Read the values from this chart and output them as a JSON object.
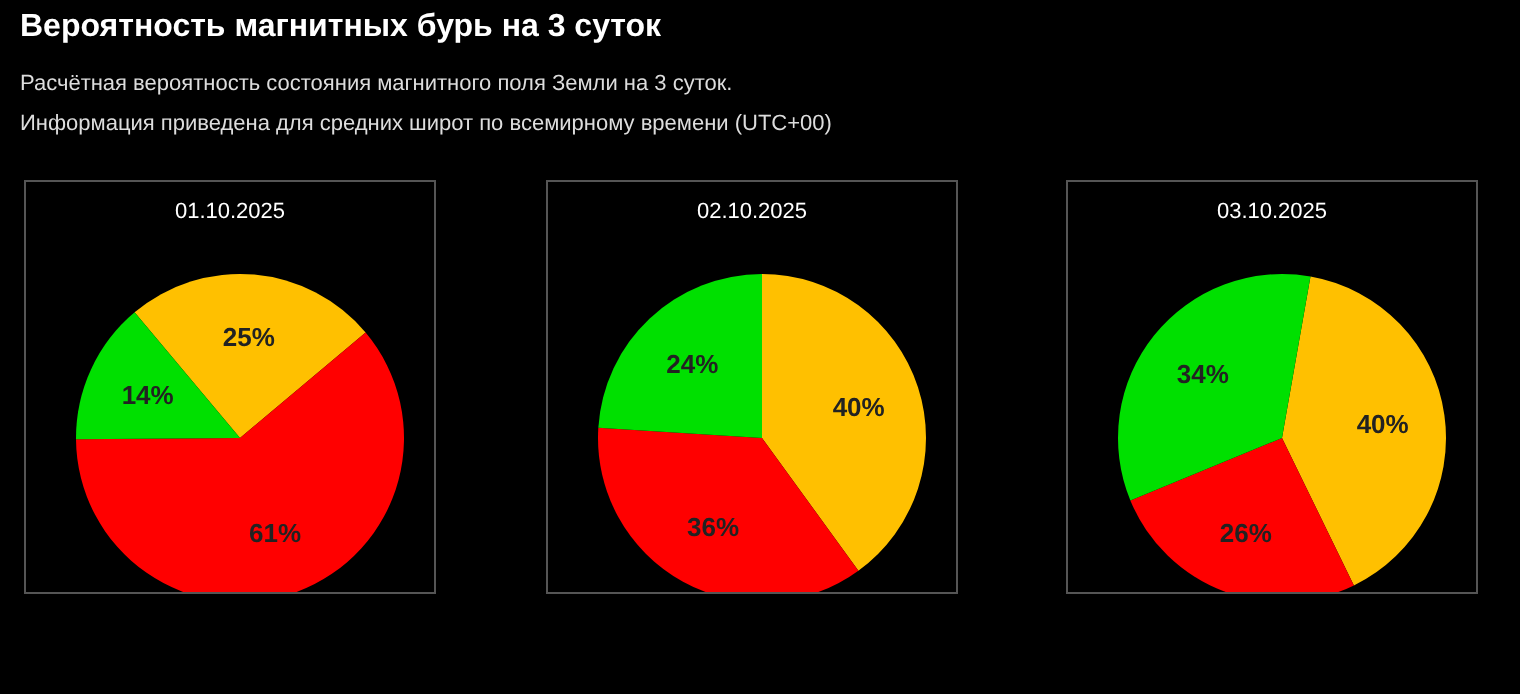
{
  "chart_data": [
    {
      "type": "pie",
      "title": "01.10.2025",
      "annotations": [
        "Вероятность магнитных бурь на 3 суток",
        "Расчётная вероятность состояния магнитного поля Земли на 3 суток.",
        "Информация приведена для средних широт по всемирному времени (UTC+00)"
      ],
      "categories": [
        null,
        null,
        null
      ],
      "values": [
        25,
        61,
        14
      ],
      "colors": [
        "#ffc000",
        "#ff0000",
        "#00e000"
      ],
      "value_labels": [
        "25%",
        "61%",
        "14%"
      ]
    },
    {
      "type": "pie",
      "title": "02.10.2025",
      "categories": [
        null,
        null,
        null
      ],
      "values": [
        40,
        36,
        24
      ],
      "colors": [
        "#ffc000",
        "#ff0000",
        "#00e000"
      ],
      "value_labels": [
        "40%",
        "36%",
        "24%"
      ]
    },
    {
      "type": "pie",
      "title": "03.10.2025",
      "categories": [
        null,
        null,
        null
      ],
      "values": [
        40,
        26,
        34
      ],
      "colors": [
        "#ffc000",
        "#ff0000",
        "#00e000"
      ],
      "value_labels": [
        "40%",
        "26%",
        "34%"
      ]
    }
  ]
}
